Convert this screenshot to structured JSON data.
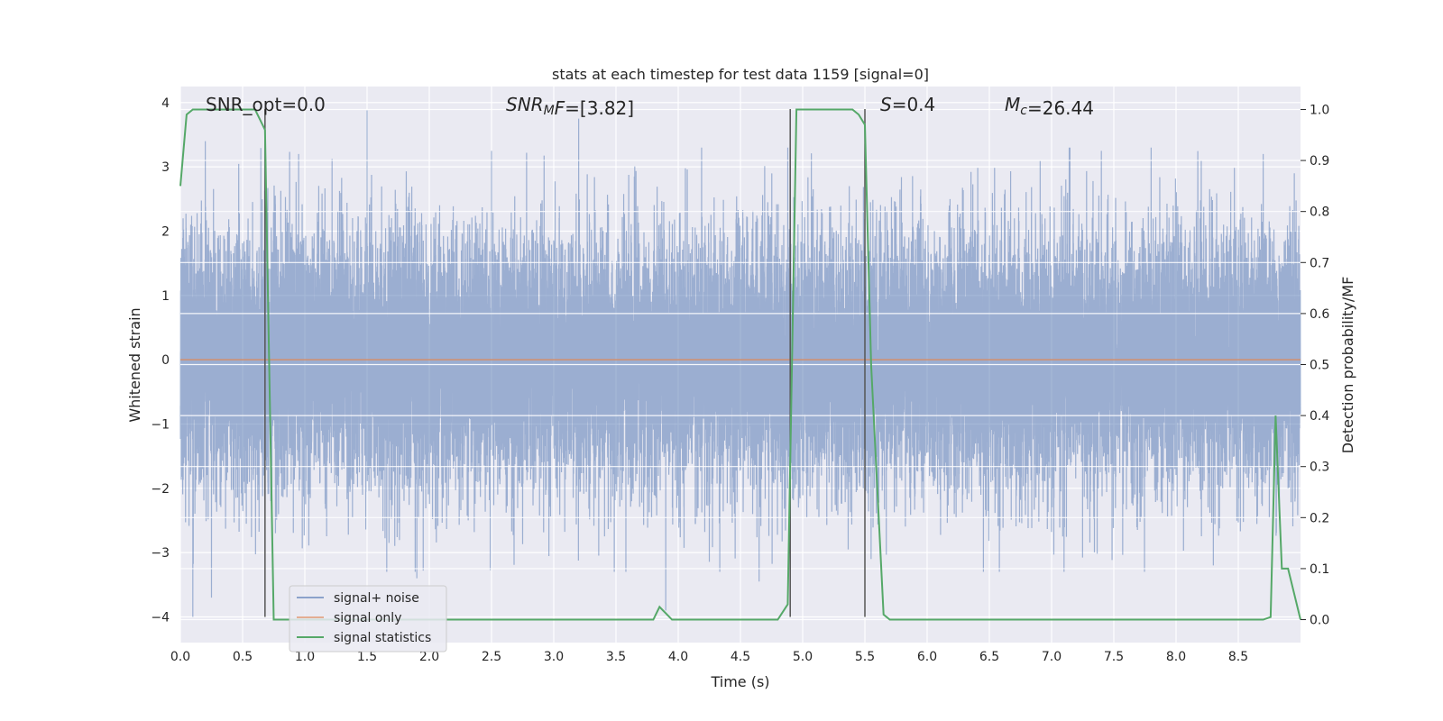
{
  "chart_data": {
    "type": "line",
    "title": "stats at each timestep for test data 1159 [signal=0]",
    "xlabel": "Time (s)",
    "ylabel": "Whitened strain",
    "y2label": "Detection probability/MF",
    "xlim": [
      0,
      9.0
    ],
    "ylim": [
      -4.4,
      4.25
    ],
    "y2lim": [
      -0.045,
      1.045
    ],
    "xticks": [
      0.0,
      0.5,
      1.0,
      1.5,
      2.0,
      2.5,
      3.0,
      3.5,
      4.0,
      4.5,
      5.0,
      5.5,
      6.0,
      6.5,
      7.0,
      7.5,
      8.0,
      8.5
    ],
    "xtick_labels": [
      "0.0",
      "0.5",
      "1.0",
      "1.5",
      "2.0",
      "2.5",
      "3.0",
      "3.5",
      "4.0",
      "4.5",
      "5.0",
      "5.5",
      "6.0",
      "6.5",
      "7.0",
      "7.5",
      "8.0",
      "8.5"
    ],
    "yticks": [
      -4,
      -3,
      -2,
      -1,
      0,
      1,
      2,
      3,
      4
    ],
    "ytick_labels": [
      "−4",
      "−3",
      "−2",
      "−1",
      "0",
      "1",
      "2",
      "3",
      "4"
    ],
    "y2ticks": [
      0.0,
      0.1,
      0.2,
      0.3,
      0.4,
      0.5,
      0.6,
      0.7,
      0.8,
      0.9,
      1.0
    ],
    "y2tick_labels": [
      "0.0",
      "0.1",
      "0.2",
      "0.3",
      "0.4",
      "0.5",
      "0.6",
      "0.7",
      "0.8",
      "0.9",
      "1.0"
    ],
    "grid": true,
    "legend_position": "lower-left",
    "series": [
      {
        "name": "signal+ noise",
        "color": "#4c72b0",
        "style": "dense noise, amplitude ~N(0,1) up to about ±4",
        "sample_rate_hz": 2048,
        "peaks": [
          [
            0.1,
            2.25
          ],
          [
            0.2,
            3.4
          ],
          [
            0.95,
            3.2
          ],
          [
            1.5,
            3.88
          ],
          [
            2.5,
            3.25
          ],
          [
            3.2,
            3.75
          ],
          [
            5.55,
            3.05
          ],
          [
            7.4,
            3.25
          ],
          [
            8.7,
            3.2
          ],
          [
            8.95,
            2.9
          ]
        ],
        "troughs": [
          [
            0.1,
            -4.0
          ],
          [
            0.25,
            -3.7
          ],
          [
            1.9,
            -3.4
          ],
          [
            3.9,
            -3.9
          ],
          [
            4.65,
            -3.45
          ],
          [
            5.55,
            -3.1
          ],
          [
            7.1,
            -3.3
          ],
          [
            8.3,
            -3.2
          ],
          [
            8.9,
            -2.0
          ]
        ]
      },
      {
        "name": "signal only",
        "color": "#dd8452",
        "x": [
          0.0,
          9.0
        ],
        "y": [
          0.0,
          0.0
        ]
      },
      {
        "name": "signal statistics",
        "color": "#55a868",
        "axis": "right",
        "x": [
          0.0,
          0.05,
          0.1,
          0.4,
          0.6,
          0.68,
          0.75,
          2.4,
          3.8,
          3.85,
          3.95,
          4.8,
          4.88,
          4.95,
          5.0,
          5.4,
          5.45,
          5.5,
          5.55,
          5.65,
          5.7,
          7.0,
          8.7,
          8.76,
          8.8,
          8.85,
          8.9,
          9.0
        ],
        "y": [
          0.85,
          0.99,
          1.0,
          1.0,
          1.0,
          0.96,
          0.0,
          0.0,
          0.0,
          0.025,
          0.0,
          0.0,
          0.03,
          1.0,
          1.0,
          1.0,
          0.99,
          0.97,
          0.5,
          0.01,
          0.0,
          0.0,
          0.0,
          0.005,
          0.4,
          0.1,
          0.1,
          0.0
        ]
      }
    ],
    "vlines": {
      "color": "#555555",
      "x": [
        0.68,
        4.9,
        5.5
      ],
      "y_range": [
        -4.0,
        3.9
      ]
    },
    "annotations": [
      {
        "parts": [
          {
            "text": "SNR_opt=0.0"
          }
        ]
      },
      {
        "parts": [
          {
            "text": "SNR",
            "italic": true
          },
          {
            "text": "M",
            "italic": true,
            "sub": true
          },
          {
            "text": "F",
            "italic": true
          },
          {
            "text": "=[3.82]"
          }
        ]
      },
      {
        "parts": [
          {
            "text": "S",
            "italic": true
          },
          {
            "text": "=0.4"
          }
        ]
      },
      {
        "parts": [
          {
            "text": "M",
            "italic": true
          },
          {
            "text": "c",
            "italic": true,
            "sub": true
          },
          {
            "text": "=26.44"
          }
        ]
      }
    ],
    "legend": [
      "signal+ noise",
      "signal only",
      "signal statistics"
    ]
  },
  "colors": {
    "background": "#ffffff",
    "plot_background": "#eaeaf2",
    "grid": "#ffffff",
    "noise": "#4c72b0",
    "signal": "#dd8452",
    "statistics": "#55a868"
  }
}
